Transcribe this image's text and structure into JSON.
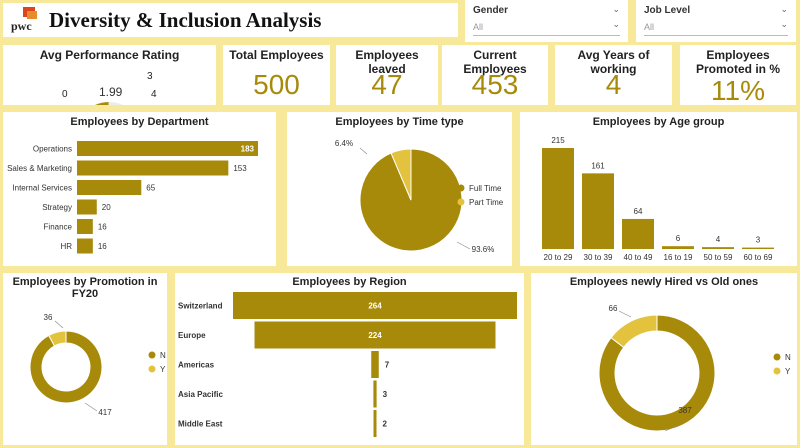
{
  "header": {
    "logo_text": "pwc",
    "title": "Diversity & Inclusion Analysis"
  },
  "slicers": [
    {
      "label": "Gender",
      "value": "All"
    },
    {
      "label": "Job Level",
      "value": "All"
    }
  ],
  "kpis": {
    "avg_rating": {
      "title": "Avg Performance Rating",
      "value": "1.99",
      "min": "0",
      "max": "4",
      "target": "3"
    },
    "total": {
      "title": "Total Employees",
      "value": "500"
    },
    "leaved": {
      "title": "Employees leaved",
      "value": "47"
    },
    "current": {
      "title": "Current Employees",
      "value": "453"
    },
    "years": {
      "title": "Avg Years of working",
      "value": "4"
    },
    "promoted": {
      "title": "Employees Promoted in %",
      "value": "11%"
    }
  },
  "colors": {
    "gold": "#a88a0a",
    "light_gold": "#e3c33e",
    "bg": "#f8e99a"
  },
  "chart_data": [
    {
      "id": "department",
      "type": "bar",
      "title": "Employees by Department",
      "categories": [
        "Operations",
        "Sales & Marketing",
        "Internal Services",
        "Strategy",
        "Finance",
        "HR"
      ],
      "values": [
        183,
        153,
        65,
        20,
        16,
        16
      ],
      "labels": [
        "183",
        "153",
        "65",
        "20",
        "16",
        "16"
      ]
    },
    {
      "id": "time_type",
      "type": "pie",
      "title": "Employees by Time type",
      "categories": [
        "Full Time",
        "Part Time"
      ],
      "values": [
        93.6,
        6.4
      ],
      "labels": [
        "93.6%",
        "6.4%"
      ],
      "legend": "right"
    },
    {
      "id": "age_group",
      "type": "bar",
      "title": "Employees by Age group",
      "categories": [
        "20 to 29",
        "30 to 39",
        "40 to 49",
        "16 to 19",
        "50 to 59",
        "60 to 69"
      ],
      "values": [
        215,
        161,
        64,
        6,
        4,
        3
      ],
      "labels": [
        "215",
        "161",
        "64",
        "6",
        "4",
        "3"
      ]
    },
    {
      "id": "promotion",
      "type": "pie",
      "title": "Employees by Promotion in FY20",
      "categories": [
        "N",
        "Y"
      ],
      "values": [
        417,
        36
      ],
      "labels": [
        "417",
        "36"
      ],
      "legend": "right"
    },
    {
      "id": "region",
      "type": "bar",
      "title": "Employees by Region",
      "categories": [
        "Switzerland",
        "Europe",
        "Americas",
        "Asia Pacific",
        "Middle East"
      ],
      "values": [
        264,
        224,
        7,
        3,
        2
      ],
      "labels": [
        "264",
        "224",
        "7",
        "3",
        "2"
      ]
    },
    {
      "id": "hired",
      "type": "pie",
      "title": "Employees newly Hired vs Old ones",
      "categories": [
        "N",
        "Y"
      ],
      "values": [
        387,
        66
      ],
      "labels": [
        "387",
        "66"
      ],
      "legend": "right"
    }
  ]
}
